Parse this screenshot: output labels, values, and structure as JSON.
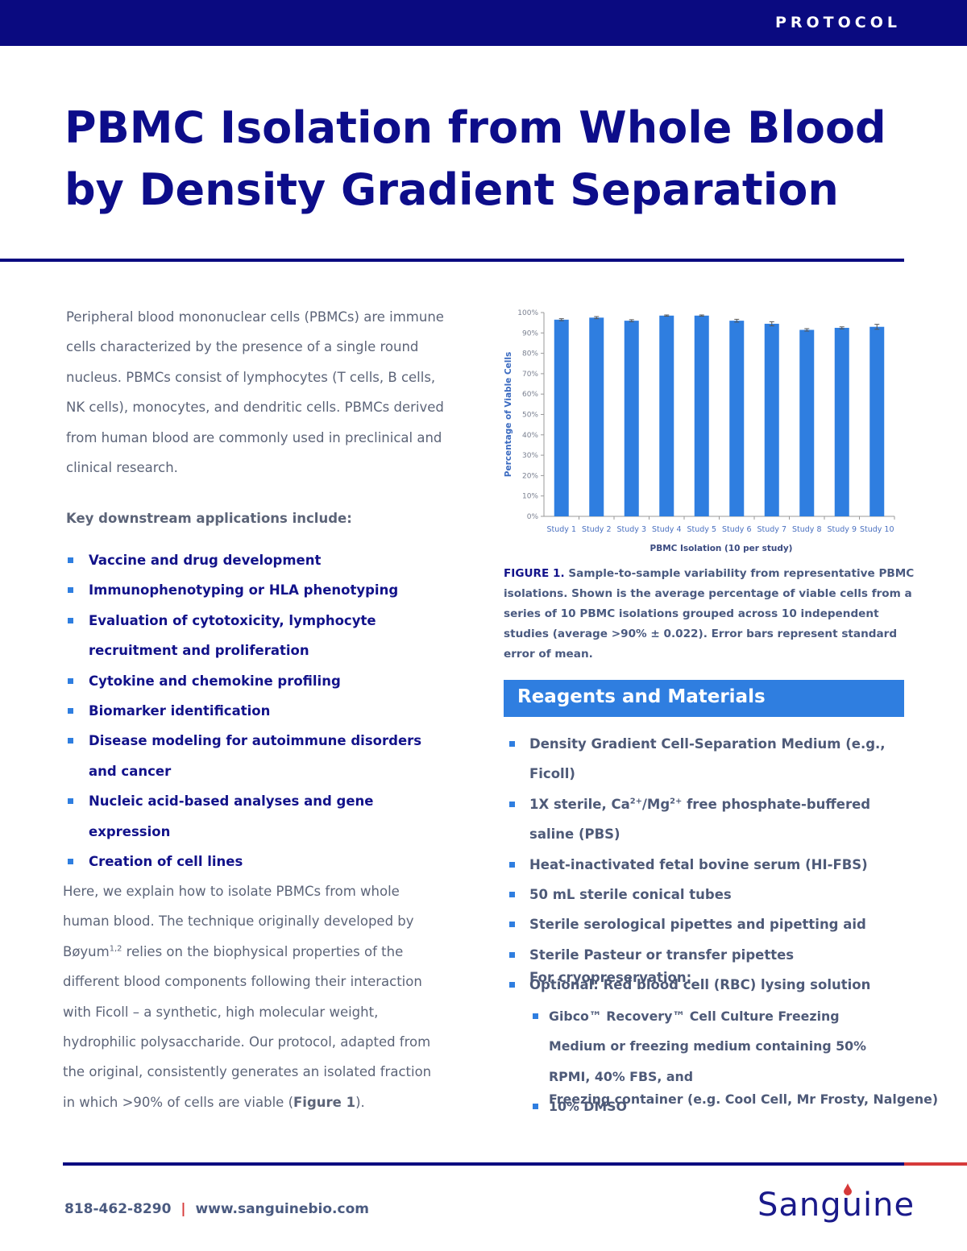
{
  "header": {
    "label": "PROTOCOL"
  },
  "title": {
    "lines": [
      "PBMC Isolation from Whole Blood",
      "by Density Gradient Separation"
    ]
  },
  "intro": "Peripheral blood mononuclear cells (PBMCs) are immune cells characterized by the presence of a single round nucleus. PBMCs consist of lymphocytes (T cells, B cells, NK cells), monocytes, and dendritic cells. PBMCs derived from human blood are commonly used in preclinical and clinical research.",
  "applications": {
    "heading": "Key downstream applications include:",
    "items": [
      "Vaccine and drug development",
      "Immunophenotyping or HLA phenotyping",
      "Evaluation of cytotoxicity, lymphocyte recruitment and proliferation",
      "Cytokine and chemokine profiling",
      "Biomarker identification",
      "Disease modeling for autoimmune disorders and cancer",
      "Nucleic acid-based analyses and gene expression",
      "Creation of cell lines"
    ]
  },
  "explanation": {
    "parts": [
      "Here, we explain how to isolate PBMCs from whole human blood. The technique originally developed by Bøyum",
      "1,2",
      " relies on the biophysical properties of the different blood components following their interaction with Ficoll – a synthetic, high molecular weight, hydrophilic polysaccharide. Our protocol, adapted from the original, consistently generates an isolated fraction in which >90% of cells are viable (",
      "Figure 1",
      ")."
    ]
  },
  "chart_data": {
    "type": "bar",
    "categories": [
      "Study 1",
      "Study 2",
      "Study 3",
      "Study 4",
      "Study 5",
      "Study 6",
      "Study 7",
      "Study 8",
      "Study 9",
      "Study 10"
    ],
    "values": [
      96.5,
      97.5,
      96,
      98.5,
      98.5,
      96,
      94.5,
      91.5,
      92.5,
      93
    ],
    "errors": [
      0.5,
      0.5,
      0.5,
      0.3,
      0.3,
      0.7,
      1.0,
      0.6,
      0.5,
      1.2
    ],
    "color": "#2f7ee0",
    "x_label": "PBMC Isolation (10 per study)",
    "y_label": "Percentage of Viable Cells",
    "ylim": [
      0,
      100
    ],
    "yticks": [
      {
        "value": 0,
        "label": "0%"
      },
      {
        "value": 10,
        "label": "10%"
      },
      {
        "value": 20,
        "label": "20%"
      },
      {
        "value": 30,
        "label": "30%"
      },
      {
        "value": 40,
        "label": "40%"
      },
      {
        "value": 50,
        "label": "50%"
      },
      {
        "value": 60,
        "label": "60%"
      },
      {
        "value": 70,
        "label": "70%"
      },
      {
        "value": 80,
        "label": "80%"
      },
      {
        "value": 90,
        "label": "90%"
      },
      {
        "value": 100,
        "label": "100%"
      }
    ]
  },
  "figure_caption": {
    "label": "FIGURE 1.",
    "text": "Sample-to-sample variability from representative PBMC isolations. Shown is the average percentage of viable cells from a series of 10 PBMC isolations grouped across 10 independent studies (average >90% ± 0.022). Error bars represent standard error of mean."
  },
  "reagents": {
    "heading": "Reagents and Materials",
    "items": [
      {
        "parts": [
          "Density Gradient Cell-Separation Medium (e.g., Ficoll)"
        ]
      },
      {
        "parts": [
          "1X sterile, Ca",
          "2+",
          "/Mg",
          "2+",
          " free phosphate-buffered saline (PBS)"
        ]
      },
      {
        "parts": [
          "Heat-inactivated fetal bovine serum (HI-FBS)"
        ]
      },
      {
        "parts": [
          "50 mL sterile conical tubes"
        ]
      },
      {
        "parts": [
          "Sterile serological pipettes and pipetting aid"
        ]
      },
      {
        "parts": [
          "Sterile Pasteur or transfer pipettes"
        ]
      },
      {
        "parts": [
          "Optional: Red blood cell (RBC) lysing solution"
        ]
      }
    ],
    "cryo_heading": "For cryopreservation:",
    "cryo_items": [
      "Gibco™ Recovery™ Cell Culture Freezing Medium or freezing medium containing 50% RPMI, 40% FBS, and",
      "10% DMSO"
    ],
    "cryo_note": "Freezing container (e.g. Cool Cell, Mr Frosty, Nalgene)"
  },
  "footer": {
    "phone": "818-462-8290",
    "separator": "|",
    "website": "www.sanguinebio.com",
    "logo": "Sanguine"
  }
}
